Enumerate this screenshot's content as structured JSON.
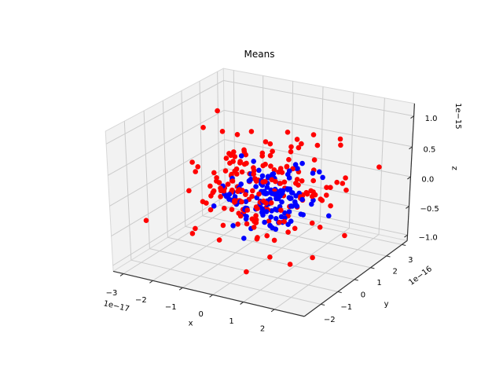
{
  "chart_data": {
    "type": "scatter",
    "subtype": "scatter3d",
    "title": "Means",
    "xlabel": "x",
    "ylabel": "y",
    "zlabel": "z",
    "x_offset_text": "1e−17",
    "y_offset_text": "1e−16",
    "z_offset_text": "1e−15",
    "x_ticks": [
      -3,
      -2,
      -1,
      0,
      1,
      2
    ],
    "x_tick_labels": [
      "−3",
      "−2",
      "−1",
      "0",
      "1",
      "2"
    ],
    "y_ticks": [
      -2,
      -1,
      0,
      1,
      2,
      3
    ],
    "y_tick_labels": [
      "−2",
      "−1",
      "0",
      "1",
      "2",
      "3"
    ],
    "z_ticks": [
      -1.0,
      -0.5,
      0.0,
      0.5,
      1.0
    ],
    "z_tick_labels": [
      "−1.0",
      "−0.5",
      "0.0",
      "0.5",
      "1.0"
    ],
    "xlim": [
      -3.35,
      2.95
    ],
    "ylim": [
      -2.95,
      3.35
    ],
    "zlim": [
      -1.1,
      1.2
    ],
    "grid": true,
    "legend": "none",
    "view": {
      "elev": 30,
      "azim": -60,
      "dist": 10,
      "projection": "persp"
    },
    "marker_radius_px": 3.3,
    "series": [
      {
        "name": "red cluster",
        "color": "#ff0000",
        "n": 190,
        "center": [
          -0.1,
          0.2,
          0.05
        ],
        "sigma": [
          1.05,
          1.1,
          0.42
        ],
        "seed": 1337
      },
      {
        "name": "blue cluster",
        "color": "#0000ff",
        "n": 140,
        "center": [
          0.1,
          0.15,
          -0.05
        ],
        "sigma": [
          0.6,
          0.65,
          0.28
        ],
        "seed": 4242
      }
    ],
    "colors": {
      "figure_bg": "#ffffff",
      "pane": "#f2f2f2",
      "pane_edge": "#d8d8d8",
      "grid_line": "#cbcbcb",
      "axis_line": "#333333",
      "tick_text": "#000000"
    }
  }
}
